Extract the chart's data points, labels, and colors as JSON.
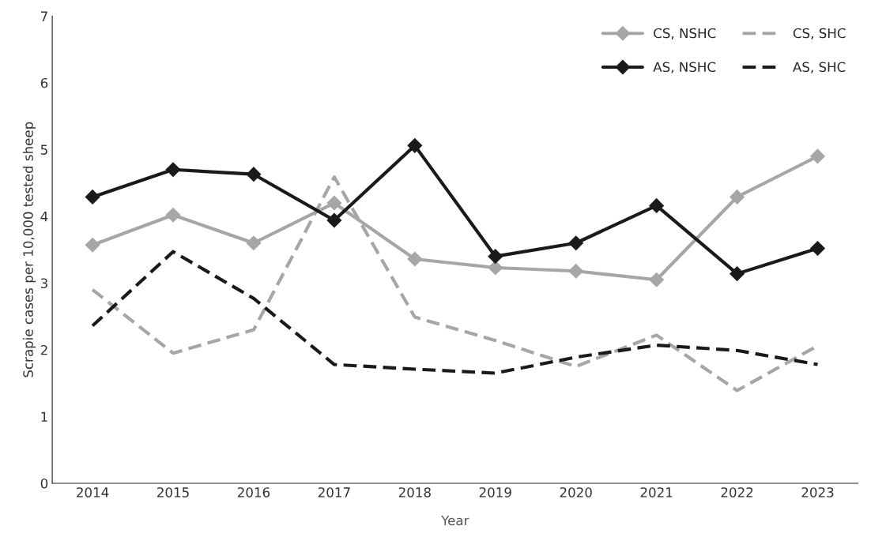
{
  "chart_data": {
    "type": "line",
    "xlabel": "Year",
    "ylabel": "Scrapie cases per 10,000 tested sheep",
    "categories": [
      "2014",
      "2015",
      "2016",
      "2017",
      "2018",
      "2019",
      "2020",
      "2021",
      "2022",
      "2023"
    ],
    "series": [
      {
        "name": "CS, NSHC",
        "color": "#a6a6a6",
        "marker": "diamond",
        "line_style": "solid",
        "values": [
          3.57,
          4.02,
          3.6,
          4.2,
          3.36,
          3.23,
          3.18,
          3.05,
          4.29,
          4.9
        ]
      },
      {
        "name": "CS, SHC",
        "color": "#a6a6a6",
        "marker": "none",
        "line_style": "dashed",
        "values": [
          2.9,
          1.95,
          2.3,
          4.59,
          2.49,
          2.14,
          1.75,
          2.22,
          1.39,
          2.06
        ]
      },
      {
        "name": "AS, NSHC",
        "color": "#1a1a1a",
        "marker": "diamond",
        "line_style": "solid",
        "values": [
          4.29,
          4.7,
          4.63,
          3.94,
          5.06,
          3.4,
          3.6,
          4.16,
          3.14,
          3.52
        ]
      },
      {
        "name": "AS, SHC",
        "color": "#1a1a1a",
        "marker": "none",
        "line_style": "dashed",
        "values": [
          2.36,
          3.47,
          2.77,
          1.78,
          1.71,
          1.65,
          1.89,
          2.07,
          1.99,
          1.78
        ]
      }
    ],
    "ylim": [
      0,
      7
    ],
    "yticks": [
      0,
      1,
      2,
      3,
      4,
      5,
      6,
      7
    ],
    "grid": false,
    "legend": "top right"
  }
}
